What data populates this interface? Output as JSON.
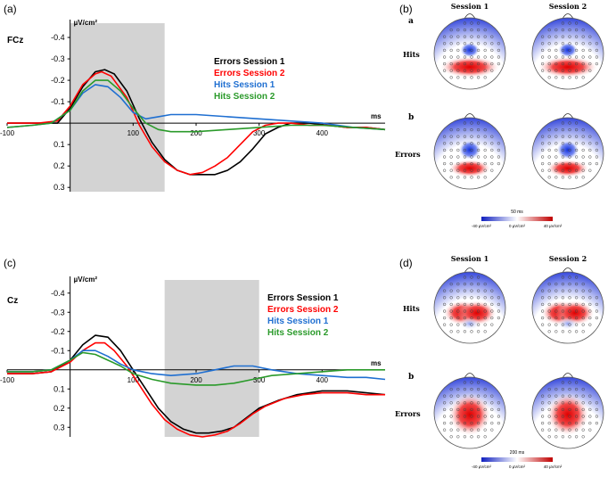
{
  "panels": {
    "a": "(a)",
    "b": "(b)",
    "c": "(c)",
    "d": "(d)"
  },
  "colors": {
    "errors_s1": "#000000",
    "errors_s2": "#ff0000",
    "hits_s1": "#1f6fd1",
    "hits_s2": "#2a9a2a",
    "shade": "#d3d3d3"
  },
  "chart_data": [
    {
      "type": "line",
      "panel": "(a)",
      "channel": "FCz",
      "ylabel": "µV/cm²",
      "xlabel": "ms",
      "x_ticks": [
        "-100",
        "100",
        "200",
        "300",
        "400"
      ],
      "y_ticks": [
        "-0.4",
        "-0.3",
        "-0.2",
        "-0.1",
        "0.1",
        "0.2",
        "0.3"
      ],
      "y_inverted": true,
      "xlim": [
        -100,
        500
      ],
      "ylim": [
        -0.45,
        0.32
      ],
      "shaded_interval_ms": [
        0,
        150
      ],
      "series": [
        {
          "name": "Errors Session 1",
          "x": [
            -100,
            -50,
            -20,
            0,
            20,
            40,
            55,
            70,
            90,
            110,
            130,
            150,
            170,
            190,
            210,
            230,
            250,
            270,
            290,
            310,
            330,
            350,
            380,
            410,
            440,
            470,
            500
          ],
          "values": [
            0.0,
            0.0,
            0.0,
            -0.07,
            -0.17,
            -0.24,
            -0.25,
            -0.23,
            -0.15,
            -0.02,
            0.09,
            0.17,
            0.22,
            0.24,
            0.24,
            0.24,
            0.22,
            0.18,
            0.12,
            0.05,
            0.02,
            0.0,
            0.0,
            0.01,
            0.02,
            0.02,
            0.03
          ]
        },
        {
          "name": "Errors Session 2",
          "x": [
            -100,
            -50,
            -20,
            0,
            20,
            40,
            50,
            65,
            90,
            110,
            130,
            150,
            170,
            190,
            210,
            230,
            250,
            270,
            290,
            310,
            330,
            350,
            380,
            410,
            440,
            470,
            500
          ],
          "values": [
            0.0,
            0.0,
            -0.01,
            -0.08,
            -0.18,
            -0.23,
            -0.24,
            -0.22,
            -0.12,
            0.01,
            0.11,
            0.18,
            0.22,
            0.24,
            0.23,
            0.2,
            0.16,
            0.1,
            0.04,
            0.01,
            0.0,
            0.0,
            0.01,
            0.01,
            0.02,
            0.02,
            0.03
          ]
        },
        {
          "name": "Hits Session 1",
          "x": [
            -100,
            -60,
            -30,
            0,
            20,
            40,
            60,
            80,
            100,
            120,
            140,
            160,
            200,
            250,
            300,
            350,
            400,
            450,
            500
          ],
          "values": [
            0.02,
            0.01,
            0.0,
            -0.06,
            -0.14,
            -0.18,
            -0.17,
            -0.12,
            -0.05,
            -0.02,
            -0.03,
            -0.04,
            -0.04,
            -0.03,
            -0.02,
            -0.01,
            0.0,
            0.02,
            0.03
          ]
        },
        {
          "name": "Hits Session 2",
          "x": [
            -100,
            -60,
            -30,
            0,
            20,
            40,
            60,
            80,
            100,
            120,
            140,
            160,
            200,
            250,
            300,
            350,
            400,
            450,
            500
          ],
          "values": [
            0.02,
            0.01,
            0.0,
            -0.06,
            -0.15,
            -0.2,
            -0.2,
            -0.15,
            -0.07,
            0.0,
            0.03,
            0.04,
            0.04,
            0.03,
            0.02,
            0.01,
            0.01,
            0.02,
            0.03
          ]
        }
      ]
    },
    {
      "type": "line",
      "panel": "(c)",
      "channel": "Cz",
      "ylabel": "µV/cm²",
      "xlabel": "ms",
      "x_ticks": [
        "-100",
        "100",
        "200",
        "300",
        "400"
      ],
      "y_ticks": [
        "-0.4",
        "-0.3",
        "-0.2",
        "-0.1",
        "0.1",
        "0.2",
        "0.3"
      ],
      "y_inverted": true,
      "xlim": [
        -100,
        500
      ],
      "ylim": [
        -0.45,
        0.35
      ],
      "shaded_interval_ms": [
        150,
        300
      ],
      "series": [
        {
          "name": "Errors Session 1",
          "x": [
            -100,
            -60,
            -30,
            0,
            20,
            40,
            60,
            80,
            100,
            120,
            140,
            160,
            180,
            200,
            220,
            240,
            260,
            280,
            300,
            330,
            360,
            400,
            440,
            470,
            500
          ],
          "values": [
            0.02,
            0.02,
            0.01,
            -0.05,
            -0.13,
            -0.18,
            -0.17,
            -0.1,
            0.0,
            0.1,
            0.2,
            0.27,
            0.31,
            0.33,
            0.33,
            0.32,
            0.3,
            0.25,
            0.2,
            0.16,
            0.13,
            0.11,
            0.11,
            0.12,
            0.13
          ]
        },
        {
          "name": "Errors Session 2",
          "x": [
            -100,
            -60,
            -30,
            0,
            20,
            40,
            55,
            70,
            90,
            110,
            130,
            150,
            170,
            190,
            210,
            230,
            250,
            270,
            290,
            310,
            340,
            370,
            400,
            440,
            470,
            500
          ],
          "values": [
            0.02,
            0.02,
            0.01,
            -0.04,
            -0.1,
            -0.14,
            -0.14,
            -0.1,
            -0.02,
            0.08,
            0.18,
            0.26,
            0.31,
            0.34,
            0.35,
            0.34,
            0.32,
            0.28,
            0.23,
            0.19,
            0.15,
            0.13,
            0.12,
            0.12,
            0.13,
            0.13
          ]
        },
        {
          "name": "Hits Session 1",
          "x": [
            -100,
            -60,
            -30,
            0,
            20,
            40,
            60,
            80,
            100,
            130,
            160,
            200,
            230,
            260,
            290,
            320,
            360,
            400,
            440,
            470,
            500
          ],
          "values": [
            0.01,
            0.01,
            0.0,
            -0.05,
            -0.1,
            -0.1,
            -0.07,
            -0.03,
            0.0,
            0.02,
            0.03,
            0.02,
            0.0,
            -0.02,
            -0.02,
            0.0,
            0.02,
            0.03,
            0.04,
            0.04,
            0.05
          ]
        },
        {
          "name": "Hits Session 2",
          "x": [
            -100,
            -60,
            -30,
            0,
            20,
            40,
            60,
            80,
            100,
            130,
            160,
            200,
            230,
            260,
            290,
            320,
            360,
            400,
            440,
            470,
            500
          ],
          "values": [
            0.01,
            0.01,
            0.0,
            -0.05,
            -0.09,
            -0.08,
            -0.05,
            -0.02,
            0.02,
            0.05,
            0.07,
            0.08,
            0.08,
            0.07,
            0.05,
            0.03,
            0.02,
            0.01,
            0.0,
            0.0,
            0.0
          ]
        }
      ]
    }
  ],
  "topo_b": {
    "sessions": [
      "Session 1",
      "Session 2"
    ],
    "row1_letter": "a",
    "row1_label": "Hits",
    "row2_letter": "b",
    "row2_label": "Errors",
    "time": "50 ms",
    "scale": [
      "-40 µV/cm²",
      "0 µV/cm²",
      "40 µV/cm²"
    ]
  },
  "topo_d": {
    "sessions": [
      "Session 1",
      "Session 2"
    ],
    "row1_label": "Hits",
    "row2_letter": "b",
    "row2_label": "Errors",
    "time": "200 ms",
    "scale": [
      "-40 µV/cm²",
      "0 µV/cm²",
      "40 µV/cm²"
    ]
  }
}
